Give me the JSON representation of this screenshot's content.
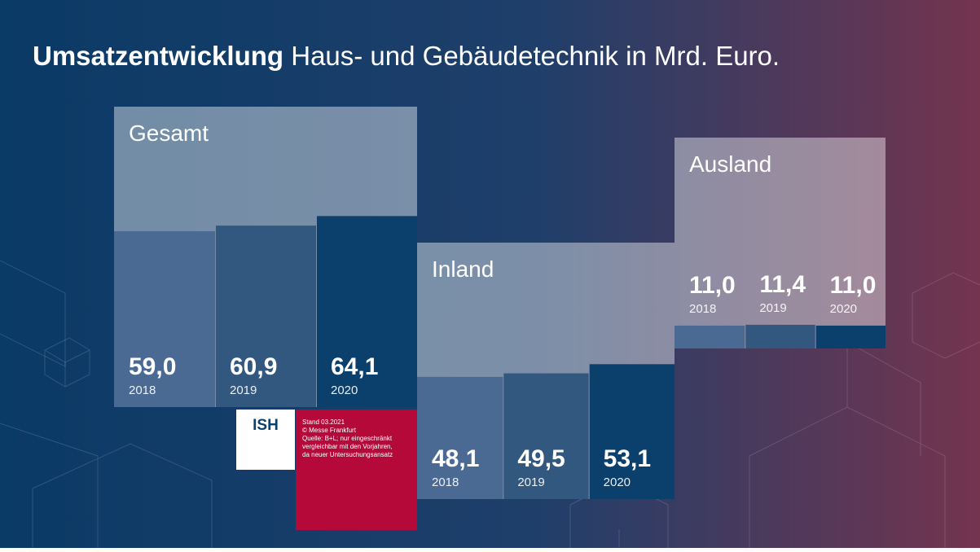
{
  "title": "Umsatzentwicklung",
  "subtitle": "Haus- und Gebäudetechnik in Mrd. Euro.",
  "logo": "ISH",
  "note": [
    "Stand 03.2021",
    "© Messe Frankfurt",
    "Quelle: B+L; nur eingeschränkt",
    "vergleichbar mit den Vorjahren,",
    "da neuer Untersuchungsansatz"
  ],
  "chart_data": [
    {
      "type": "bar",
      "title": "Gesamt",
      "categories": [
        "2018",
        "2019",
        "2020"
      ],
      "values": [
        59.0,
        60.9,
        64.1
      ],
      "value_labels": [
        "59,0",
        "60,9",
        "64,1"
      ],
      "colors": [
        "#4a6a93",
        "#33587f",
        "#0b3f6c"
      ]
    },
    {
      "type": "bar",
      "title": "Inland",
      "categories": [
        "2018",
        "2019",
        "2020"
      ],
      "values": [
        48.1,
        49.5,
        53.1
      ],
      "value_labels": [
        "48,1",
        "49,5",
        "53,1"
      ],
      "colors": [
        "#4a6a93",
        "#33587f",
        "#0b3f6c"
      ]
    },
    {
      "type": "bar",
      "title": "Ausland",
      "categories": [
        "2018",
        "2019",
        "2020"
      ],
      "values": [
        11.0,
        11.4,
        11.0
      ],
      "value_labels": [
        "11,0",
        "11,4",
        "11,0"
      ],
      "colors": [
        "#4a6a93",
        "#33587f",
        "#0b3f6c"
      ]
    }
  ]
}
